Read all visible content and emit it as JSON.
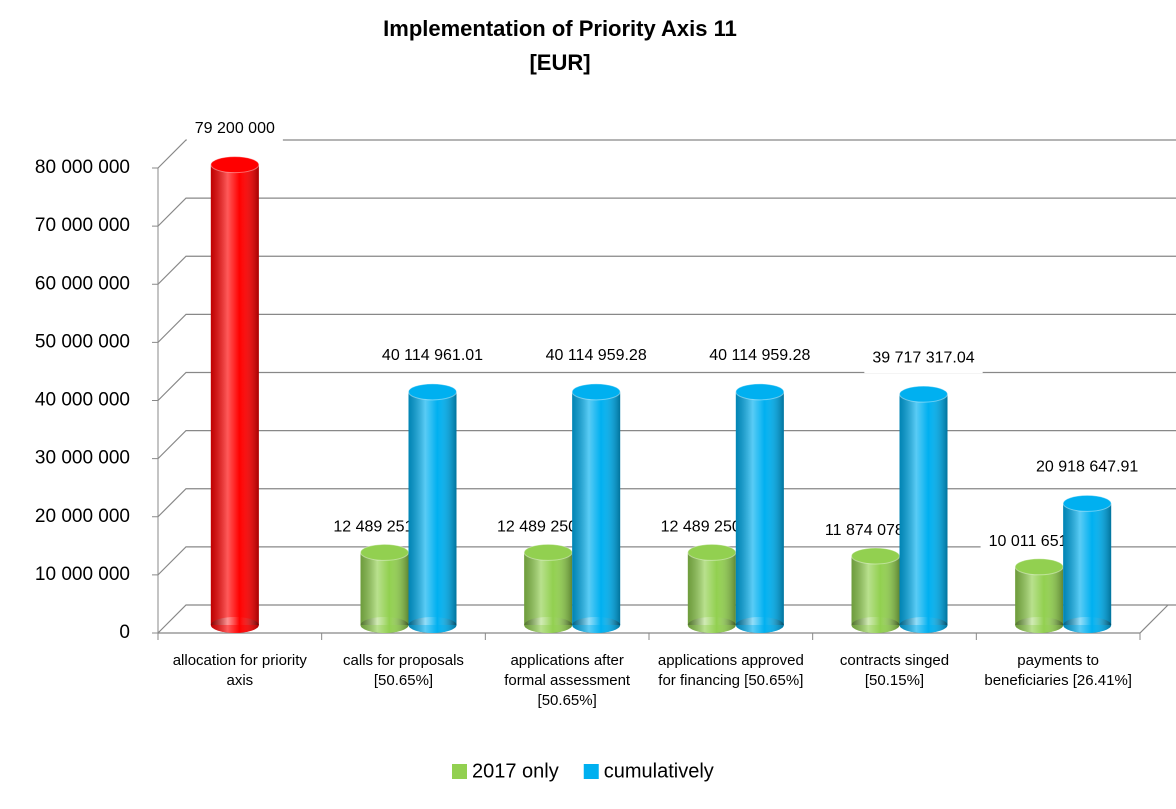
{
  "chart_data": {
    "type": "bar3d",
    "title": "Implementation of Priority Axis 11",
    "subtitle": "[EUR]",
    "categories": [
      "allocation for priority axis",
      "calls for proposals [50.65%]",
      "applications after formal assessment [50.65%]",
      "applications approved for financing [50.65%]",
      "contracts singed [50.15%]",
      "payments to beneficiaries [26.41%]"
    ],
    "series": [
      {
        "name": "2017 only",
        "color": "#92d050",
        "values": [
          null,
          12489251.1,
          12489250.94,
          12489250.94,
          11874078.08,
          10011651.54
        ],
        "value_labels": [
          null,
          "12 489 251.10",
          "12 489 250.94",
          "12 489 250.94",
          "11 874 078.08",
          "10 011 651.54"
        ]
      },
      {
        "name": "cumulatively",
        "color": "#00b0f0",
        "colors": [
          "#ff0000",
          "#00b0f0",
          "#00b0f0",
          "#00b0f0",
          "#00b0f0",
          "#00b0f0"
        ],
        "values": [
          79200000,
          40114961.01,
          40114959.28,
          40114959.28,
          39717317.04,
          20918647.91
        ],
        "value_labels": [
          "79 200 000",
          "40 114 961.01",
          "40 114 959.28",
          "40 114 959.28",
          "39 717 317.04",
          "20 918 647.91"
        ]
      }
    ],
    "ylim": [
      0,
      80000000
    ],
    "yticks": [
      0,
      {
        "value": 10000000,
        "label": "10 000 000"
      },
      {
        "value": 20000000,
        "label": "20 000 000"
      },
      {
        "value": 30000000,
        "label": "30 000 000"
      },
      {
        "value": 40000000,
        "label": "40 000 000"
      },
      {
        "value": 50000000,
        "label": "50 000 000"
      },
      {
        "value": 60000000,
        "label": "60 000 000"
      },
      {
        "value": 70000000,
        "label": "70 000 000"
      },
      {
        "value": 80000000,
        "label": "80 000 000"
      }
    ],
    "grid": true,
    "legend": "bottom"
  }
}
